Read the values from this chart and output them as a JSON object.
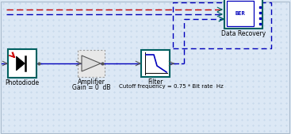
{
  "bg_color": "#dce8f5",
  "grid_color": "#b0c8e0",
  "component_border": "#006060",
  "blue_line": "#0000bb",
  "red_line": "#cc0000",
  "figsize": [
    3.67,
    1.69
  ],
  "dpi": 100,
  "labels": {
    "photodiode": "Photodiode",
    "amplifier_line1": "Amplifier",
    "amplifier_line2": "Gain = 0  dB",
    "filter_line1": "Filter",
    "filter_line2": "Cutoff frequency = 0.75 * Bit rate  Hz",
    "data_recovery": "Data Recovery"
  }
}
